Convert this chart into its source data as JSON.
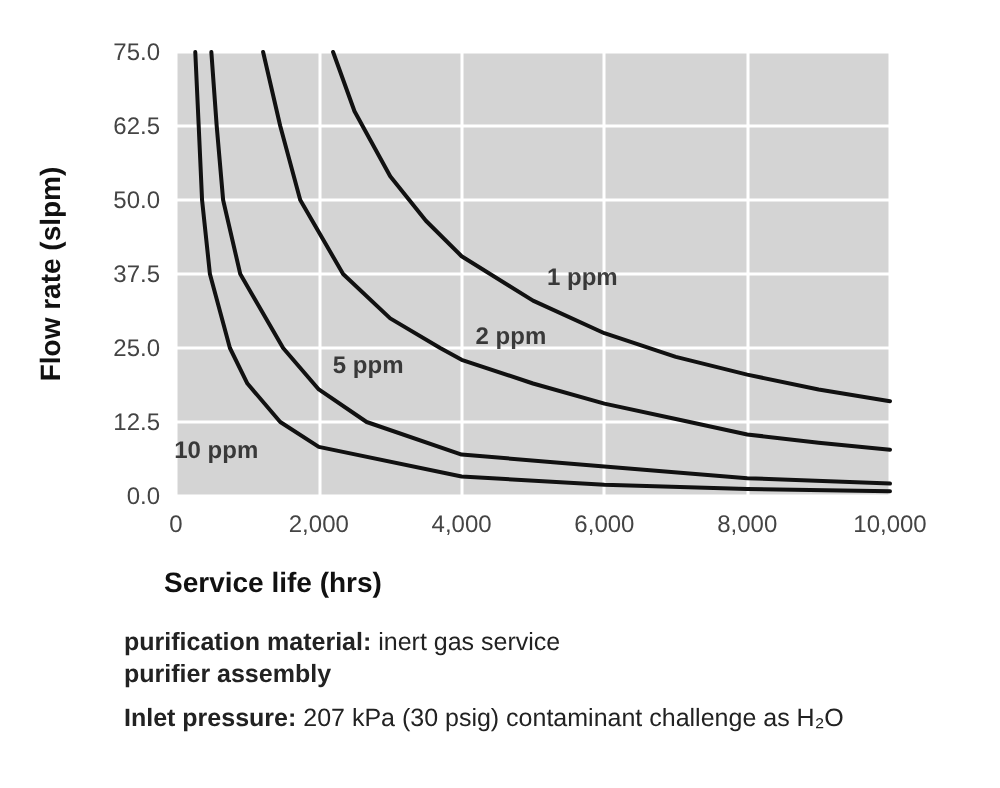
{
  "chart_data": {
    "type": "line",
    "xlabel": "Service life (hrs)",
    "ylabel": "Flow rate (slpm)",
    "xlim": [
      0,
      10000
    ],
    "xticks": [
      0,
      {
        "value": 2000,
        "label": "2,000"
      },
      {
        "value": 4000,
        "label": "4,000"
      },
      {
        "value": 6000,
        "label": "6,000"
      },
      {
        "value": 8000,
        "label": "8,000"
      },
      {
        "value": 10000,
        "label": "10,000"
      }
    ],
    "ylim": [
      0,
      75
    ],
    "yticks": [
      {
        "value": 0,
        "label": "0.0"
      },
      12.5,
      {
        "value": 25,
        "label": "25.0"
      },
      37.5,
      {
        "value": 50,
        "label": "50.0"
      },
      62.5,
      {
        "value": 75,
        "label": "75.0"
      }
    ],
    "grid": true,
    "marker": "none",
    "line_style": "solid",
    "series": [
      {
        "name": "1 ppm",
        "color": "#111111",
        "x": [
          2200,
          2500,
          3000,
          3500,
          4000,
          5000,
          6000,
          7000,
          8000,
          9000,
          10000
        ],
        "values": [
          75,
          65,
          54,
          46.5,
          40.5,
          33,
          27.5,
          23.5,
          20.5,
          18,
          16
        ]
      },
      {
        "name": "2 ppm",
        "color": "#111111",
        "x": [
          1220,
          1460,
          1740,
          2340,
          3000,
          3700,
          4000,
          5000,
          6000,
          7000,
          8000,
          9000,
          10000
        ],
        "values": [
          75,
          62.5,
          50,
          37.5,
          30,
          25,
          23,
          19,
          15.6,
          13,
          10.4,
          9,
          7.8
        ]
      },
      {
        "name": "5 ppm",
        "color": "#111111",
        "x": [
          495,
          570,
          660,
          900,
          1500,
          2000,
          2670,
          4000,
          6000,
          8000,
          10000
        ],
        "values": [
          75,
          62.5,
          50,
          37.5,
          25,
          18,
          12.5,
          7,
          5,
          3,
          2.1
        ]
      },
      {
        "name": "10 ppm",
        "color": "#111111",
        "x": [
          270,
          318,
          365,
          475,
          755,
          1000,
          1460,
          2000,
          4000,
          6000,
          8000,
          10000
        ],
        "values": [
          75,
          62.5,
          50,
          37.5,
          25,
          19,
          12.5,
          8.3,
          3.3,
          1.9,
          1.2,
          0.8
        ]
      }
    ],
    "annotations": [
      "purification material: inert gas service",
      "purifier assembly",
      "Inlet pressure: 207 kPa (30 psig) contaminant challenge as H₂O"
    ]
  }
}
